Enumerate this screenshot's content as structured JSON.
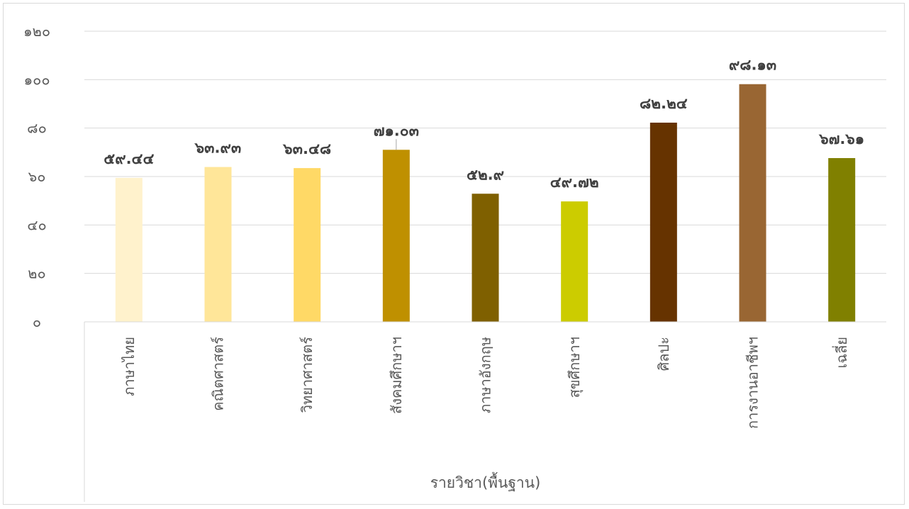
{
  "chart_data": {
    "type": "bar",
    "title": "",
    "xlabel": "รายวิชา(พื้นฐาน)",
    "ylabel": "",
    "ylim": [
      0,
      120
    ],
    "yticks": [
      0,
      20,
      40,
      60,
      80,
      100,
      120
    ],
    "ytick_labels": [
      "๐",
      "๒๐",
      "๔๐",
      "๖๐",
      "๘๐",
      "๑๐๐",
      "๑๒๐"
    ],
    "grid": true,
    "categories": [
      "ภาษาไทย",
      "คณิตศาสตร์",
      "วิทยาศาสตร์",
      "สังคมศึกษาฯ",
      "ภาษาอังกฤษ",
      "สุขศึกษาฯ",
      "ศิลปะ",
      "การงานอาชีพฯ",
      "เฉลี่ย"
    ],
    "values": [
      59.44,
      63.93,
      63.48,
      71.03,
      52.9,
      49.72,
      82.24,
      98.13,
      67.61
    ],
    "data_labels": [
      "๕๙.๔๔",
      "๖๓.๙๓",
      "๖๓.๔๘",
      "๗๑.๐๓",
      "๕๒.๙",
      "๔๙.๗๒",
      "๘๒.๒๔",
      "๙๘.๑๓",
      "๖๗.๖๑"
    ],
    "colors": [
      "#FFF2CC",
      "#FFE699",
      "#FFD966",
      "#BF9000",
      "#7F6000",
      "#CCCC00",
      "#663300",
      "#996633",
      "#808000"
    ]
  }
}
